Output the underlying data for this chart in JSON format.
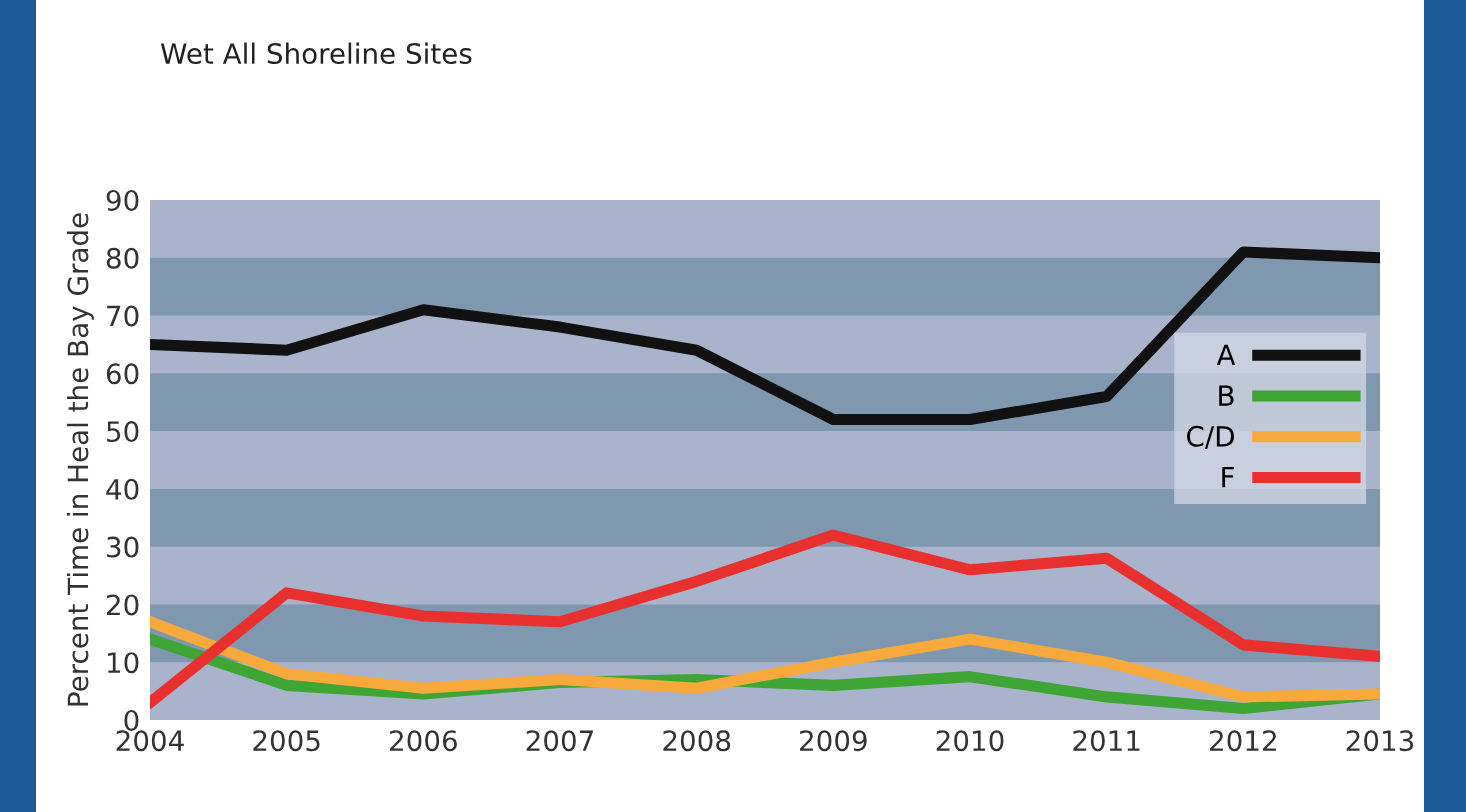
{
  "chart_data": {
    "type": "line",
    "title": "Wet All Shoreline Sites",
    "ylabel": "Percent Time in Heal the Bay Grade",
    "x": [
      2004,
      2005,
      2006,
      2007,
      2008,
      2009,
      2010,
      2011,
      2012,
      2013
    ],
    "xlim": [
      2004,
      2013
    ],
    "xticks": [
      2004,
      2005,
      2006,
      2007,
      2008,
      2009,
      2010,
      2011,
      2012,
      2013
    ],
    "ylim": [
      0,
      90
    ],
    "yticks": [
      0,
      10,
      20,
      30,
      40,
      50,
      60,
      70,
      80,
      90
    ],
    "bands": [
      {
        "axis": "y",
        "from": 10,
        "to": 20,
        "color": "#7f98b0"
      },
      {
        "axis": "y",
        "from": 30,
        "to": 40,
        "color": "#7f98b0"
      },
      {
        "axis": "y",
        "from": 50,
        "to": 60,
        "color": "#7f98b0"
      },
      {
        "axis": "y",
        "from": 70,
        "to": 80,
        "color": "#7f98b0"
      }
    ],
    "legend": "right",
    "marker": "none",
    "line_style": "solid",
    "series": [
      {
        "name": "A",
        "color": "#111111",
        "values": [
          65,
          64,
          71,
          68,
          64,
          52,
          52,
          56,
          81,
          80
        ]
      },
      {
        "name": "B",
        "color": "#3fa535",
        "values": [
          14,
          6,
          4.5,
          6.5,
          7,
          6,
          7.5,
          4,
          2,
          4.5
        ]
      },
      {
        "name": "C/D",
        "color": "#f7a93b",
        "values": [
          17,
          8,
          5.5,
          7,
          5.5,
          10,
          14,
          10,
          4,
          4.5
        ]
      },
      {
        "name": "F",
        "color": "#e8312f",
        "values": [
          3,
          22,
          18,
          17,
          24,
          32,
          26,
          28,
          13,
          11
        ]
      }
    ]
  }
}
